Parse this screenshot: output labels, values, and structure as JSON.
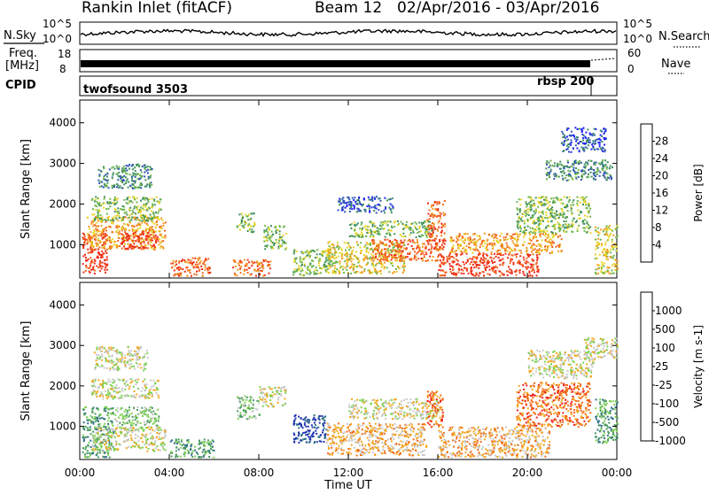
{
  "header": {
    "title": "Rankin Inlet (fitACF)",
    "beam": "Beam 12",
    "dates": "02/Apr/2016 - 03/Apr/2016"
  },
  "top_panels": {
    "nsky_label": "N.Sky",
    "nsky_ticks": [
      "10^5",
      "10^0"
    ],
    "nsearch_label": "N.Search",
    "nsearch_ticks": [
      "10^5",
      "10^0"
    ],
    "freq_label_1": "Freq.",
    "freq_label_2": "[MHz]",
    "freq_ticks": [
      "18",
      "8"
    ],
    "nave_label": "Nave",
    "nave_ticks": [
      "60",
      "0"
    ],
    "cpid_label": "CPID",
    "cpid_segments": [
      {
        "name": "twofsound 3503",
        "start_hour": 0,
        "end_hour": 22.9
      },
      {
        "name": "rbsp 200",
        "start_hour": 22.9,
        "end_hour": 24
      }
    ]
  },
  "chart_data": [
    {
      "type": "heatmap",
      "title": "",
      "xlabel": "",
      "ylabel": "Slant Range [km]",
      "x_ticks": [
        "00:00",
        "04:00",
        "08:00",
        "12:00",
        "16:00",
        "20:00",
        "00:00"
      ],
      "x_range_hours": [
        0,
        24
      ],
      "ylim": [
        180,
        4560
      ],
      "y_ticks": [
        1000,
        2000,
        3000,
        4000
      ],
      "colorbar": {
        "label": "Power [dB]",
        "ticks": [
          "4",
          "8",
          "12",
          "16",
          "20",
          "24",
          "28"
        ],
        "colors": [
          "#1f1fff",
          "#2f56b0",
          "#3d8f5f",
          "#6fb64a",
          "#e8d42a",
          "#f29a1f",
          "#f2661f",
          "#ee2c17"
        ]
      },
      "regions": [
        {
          "t0": 0.1,
          "t1": 1.2,
          "r0": 300,
          "r1": 1300,
          "level": 7
        },
        {
          "t0": 0.3,
          "t1": 3.8,
          "r0": 900,
          "r1": 1700,
          "level": 5
        },
        {
          "t0": 0.5,
          "t1": 3.6,
          "r0": 1600,
          "r1": 2200,
          "level": 3
        },
        {
          "t0": 0.8,
          "t1": 3.2,
          "r0": 2400,
          "r1": 3000,
          "level": 2
        },
        {
          "t0": 1.8,
          "t1": 3.5,
          "r0": 900,
          "r1": 1350,
          "level": 7
        },
        {
          "t0": 4.0,
          "t1": 5.8,
          "r0": 250,
          "r1": 700,
          "level": 6
        },
        {
          "t0": 6.8,
          "t1": 8.5,
          "r0": 250,
          "r1": 650,
          "level": 6
        },
        {
          "t0": 7.0,
          "t1": 7.8,
          "r0": 1300,
          "r1": 1800,
          "level": 3
        },
        {
          "t0": 8.2,
          "t1": 9.2,
          "r0": 900,
          "r1": 1500,
          "level": 3
        },
        {
          "t0": 9.5,
          "t1": 11.2,
          "r0": 250,
          "r1": 900,
          "level": 3
        },
        {
          "t0": 11.0,
          "t1": 14.5,
          "r0": 300,
          "r1": 1100,
          "level": 4
        },
        {
          "t0": 12.0,
          "t1": 15.8,
          "r0": 1200,
          "r1": 1600,
          "level": 3
        },
        {
          "t0": 11.5,
          "t1": 14.0,
          "r0": 1800,
          "r1": 2200,
          "level": 1
        },
        {
          "t0": 13.0,
          "t1": 16.0,
          "r0": 600,
          "r1": 1150,
          "level": 6
        },
        {
          "t0": 15.5,
          "t1": 16.3,
          "r0": 900,
          "r1": 2100,
          "level": 6
        },
        {
          "t0": 16.0,
          "t1": 20.5,
          "r0": 250,
          "r1": 800,
          "level": 7
        },
        {
          "t0": 16.5,
          "t1": 21.5,
          "r0": 800,
          "r1": 1300,
          "level": 5
        },
        {
          "t0": 19.5,
          "t1": 22.8,
          "r0": 1300,
          "r1": 2200,
          "level": 3
        },
        {
          "t0": 20.8,
          "t1": 23.8,
          "r0": 2600,
          "r1": 3100,
          "level": 2
        },
        {
          "t0": 21.5,
          "t1": 23.5,
          "r0": 3300,
          "r1": 3900,
          "level": 1
        },
        {
          "t0": 23.0,
          "t1": 24.0,
          "r0": 300,
          "r1": 1500,
          "level": 4
        }
      ]
    },
    {
      "type": "heatmap",
      "title": "",
      "xlabel": "Time UT",
      "ylabel": "Slant Range [km]",
      "x_ticks": [
        "00:00",
        "04:00",
        "08:00",
        "12:00",
        "16:00",
        "20:00",
        "00:00"
      ],
      "x_range_hours": [
        0,
        24
      ],
      "ylim": [
        180,
        4560
      ],
      "y_ticks": [
        1000,
        2000,
        3000,
        4000
      ],
      "colorbar": {
        "label": "Velocity [m s-1]",
        "ticks": [
          "1000",
          "500",
          "100",
          "25",
          "-25",
          "-100",
          "-500",
          "-1000"
        ],
        "colors": [
          "#2033b0",
          "#2f6f88",
          "#4b9960",
          "#7bd14f",
          "#c8c8c8",
          "#f2a81f",
          "#f26a17",
          "#ee2222"
        ]
      },
      "regions": [
        {
          "t0": 0.1,
          "t1": 1.5,
          "r0": 250,
          "r1": 1500,
          "level": 2
        },
        {
          "t0": 0.5,
          "t1": 3.8,
          "r0": 400,
          "r1": 1000,
          "level": 4
        },
        {
          "t0": 0.5,
          "t1": 3.5,
          "r0": 1700,
          "r1": 2200,
          "level": 4
        },
        {
          "t0": 0.6,
          "t1": 3.0,
          "r0": 2400,
          "r1": 3000,
          "level": 4
        },
        {
          "t0": 1.5,
          "t1": 3.5,
          "r0": 1000,
          "r1": 1500,
          "level": 3
        },
        {
          "t0": 4.0,
          "t1": 6.0,
          "r0": 250,
          "r1": 700,
          "level": 2
        },
        {
          "t0": 7.0,
          "t1": 8.0,
          "r0": 1200,
          "r1": 1800,
          "level": 3
        },
        {
          "t0": 8.0,
          "t1": 9.2,
          "r0": 1500,
          "r1": 2000,
          "level": 4
        },
        {
          "t0": 9.5,
          "t1": 11.0,
          "r0": 600,
          "r1": 1300,
          "level": 0
        },
        {
          "t0": 11.0,
          "t1": 15.5,
          "r0": 300,
          "r1": 1100,
          "level": 5
        },
        {
          "t0": 12.0,
          "t1": 16.0,
          "r0": 1200,
          "r1": 1700,
          "level": 4
        },
        {
          "t0": 15.5,
          "t1": 16.2,
          "r0": 1000,
          "r1": 1900,
          "level": 6
        },
        {
          "t0": 16.0,
          "t1": 21.0,
          "r0": 250,
          "r1": 1000,
          "level": 5
        },
        {
          "t0": 19.5,
          "t1": 22.8,
          "r0": 1000,
          "r1": 2100,
          "level": 6
        },
        {
          "t0": 20.0,
          "t1": 23.0,
          "r0": 2200,
          "r1": 2900,
          "level": 4
        },
        {
          "t0": 22.5,
          "t1": 24.0,
          "r0": 2700,
          "r1": 3200,
          "level": 4
        },
        {
          "t0": 23.0,
          "t1": 24.0,
          "r0": 600,
          "r1": 1700,
          "level": 2
        }
      ]
    }
  ]
}
